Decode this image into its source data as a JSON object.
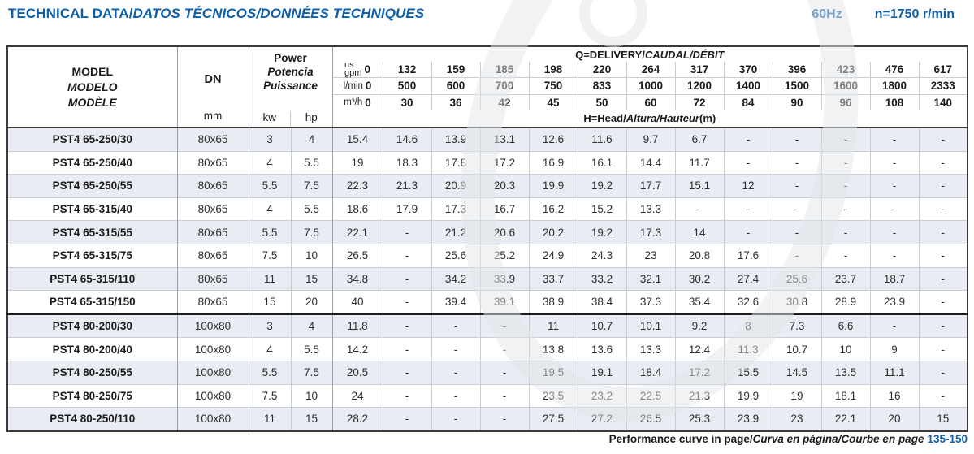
{
  "page": {
    "title": {
      "part1": "TECHNICAL DATA/",
      "part2": "DATOS TÉCNICOS/DONNÉES TECHNIQUES"
    },
    "frequency": "60Hz",
    "speed": "n=1750 r/min",
    "footer": {
      "part1": "Performance curve in page/",
      "part2": "Curva en página/Courbe en page",
      "pages": "135-150"
    }
  },
  "table": {
    "model_header": [
      "MODEL",
      "MODELO",
      "MODÈLE"
    ],
    "dn_header": {
      "label": "DN",
      "unit": "mm"
    },
    "power_header": {
      "lines": [
        "Power",
        "Potencia",
        "Puissance"
      ],
      "units": [
        "kw",
        "hp"
      ]
    },
    "delivery_label": {
      "part1": "Q=DELIVERY/",
      "part2": "CAUDAL/DÉBIT"
    },
    "head_label": {
      "part1": "H=Head/",
      "part2": "Altura/Hauteur",
      "part3": "(m)"
    },
    "flow_header": [
      {
        "unit_lines": [
          "us",
          "gpm"
        ],
        "values": [
          "0",
          "132",
          "159",
          "185",
          "198",
          "220",
          "264",
          "317",
          "370",
          "396",
          "423",
          "476",
          "617"
        ]
      },
      {
        "unit_lines": [
          "l/min"
        ],
        "values": [
          "0",
          "500",
          "600",
          "700",
          "750",
          "833",
          "1000",
          "1200",
          "1400",
          "1500",
          "1600",
          "1800",
          "2333"
        ]
      },
      {
        "unit_lines": [
          "m³/h"
        ],
        "values": [
          "0",
          "30",
          "36",
          "42",
          "45",
          "50",
          "60",
          "72",
          "84",
          "90",
          "96",
          "108",
          "140"
        ]
      }
    ],
    "group_break_index": 8,
    "rows": [
      {
        "model": "PST4 65-250/30",
        "dn": "80x65",
        "kw": "3",
        "hp": "4",
        "heads": [
          "15.4",
          "14.6",
          "13.9",
          "13.1",
          "12.6",
          "11.6",
          "9.7",
          "6.7",
          "-",
          "-",
          "-",
          "-",
          "-"
        ]
      },
      {
        "model": "PST4 65-250/40",
        "dn": "80x65",
        "kw": "4",
        "hp": "5.5",
        "heads": [
          "19",
          "18.3",
          "17.8",
          "17.2",
          "16.9",
          "16.1",
          "14.4",
          "11.7",
          "-",
          "-",
          "-",
          "-",
          "-"
        ]
      },
      {
        "model": "PST4 65-250/55",
        "dn": "80x65",
        "kw": "5.5",
        "hp": "7.5",
        "heads": [
          "22.3",
          "21.3",
          "20.9",
          "20.3",
          "19.9",
          "19.2",
          "17.7",
          "15.1",
          "12",
          "-",
          "-",
          "-",
          "-"
        ]
      },
      {
        "model": "PST4 65-315/40",
        "dn": "80x65",
        "kw": "4",
        "hp": "5.5",
        "heads": [
          "18.6",
          "17.9",
          "17.3",
          "16.7",
          "16.2",
          "15.2",
          "13.3",
          "-",
          "-",
          "-",
          "-",
          "-",
          "-"
        ]
      },
      {
        "model": "PST4 65-315/55",
        "dn": "80x65",
        "kw": "5.5",
        "hp": "7.5",
        "heads": [
          "22.1",
          "-",
          "21.2",
          "20.6",
          "20.2",
          "19.2",
          "17.3",
          "14",
          "-",
          "-",
          "-",
          "-",
          "-"
        ]
      },
      {
        "model": "PST4 65-315/75",
        "dn": "80x65",
        "kw": "7.5",
        "hp": "10",
        "heads": [
          "26.5",
          "-",
          "25.6",
          "25.2",
          "24.9",
          "24.3",
          "23",
          "20.8",
          "17.6",
          "-",
          "-",
          "-",
          "-"
        ]
      },
      {
        "model": "PST4 65-315/110",
        "dn": "80x65",
        "kw": "11",
        "hp": "15",
        "heads": [
          "34.8",
          "-",
          "34.2",
          "33.9",
          "33.7",
          "33.2",
          "32.1",
          "30.2",
          "27.4",
          "25.6",
          "23.7",
          "18.7",
          "-"
        ]
      },
      {
        "model": "PST4 65-315/150",
        "dn": "80x65",
        "kw": "15",
        "hp": "20",
        "heads": [
          "40",
          "-",
          "39.4",
          "39.1",
          "38.9",
          "38.4",
          "37.3",
          "35.4",
          "32.6",
          "30.8",
          "28.9",
          "23.9",
          "-"
        ]
      },
      {
        "model": "PST4 80-200/30",
        "dn": "100x80",
        "kw": "3",
        "hp": "4",
        "heads": [
          "11.8",
          "-",
          "-",
          "-",
          "11",
          "10.7",
          "10.1",
          "9.2",
          "8",
          "7.3",
          "6.6",
          "-",
          "-"
        ]
      },
      {
        "model": "PST4 80-200/40",
        "dn": "100x80",
        "kw": "4",
        "hp": "5.5",
        "heads": [
          "14.2",
          "-",
          "-",
          "-",
          "13.8",
          "13.6",
          "13.3",
          "12.4",
          "11.3",
          "10.7",
          "10",
          "9",
          "-"
        ]
      },
      {
        "model": "PST4 80-250/55",
        "dn": "100x80",
        "kw": "5.5",
        "hp": "7.5",
        "heads": [
          "20.5",
          "-",
          "-",
          "-",
          "19.5",
          "19.1",
          "18.4",
          "17.2",
          "15.5",
          "14.5",
          "13.5",
          "11.1",
          "-"
        ]
      },
      {
        "model": "PST4 80-250/75",
        "dn": "100x80",
        "kw": "7.5",
        "hp": "10",
        "heads": [
          "24",
          "-",
          "-",
          "-",
          "23.5",
          "23.2",
          "22.5",
          "21.3",
          "19.9",
          "19",
          "18.1",
          "16",
          "-"
        ]
      },
      {
        "model": "PST4 80-250/110",
        "dn": "100x80",
        "kw": "11",
        "hp": "15",
        "heads": [
          "28.2",
          "-",
          "-",
          "-",
          "27.5",
          "27.2",
          "26.5",
          "25.3",
          "23.9",
          "23",
          "22.1",
          "20",
          "15"
        ]
      }
    ]
  },
  "colors": {
    "accent_blue": "#0e5fa9",
    "row_band": "#e9ecf3"
  }
}
